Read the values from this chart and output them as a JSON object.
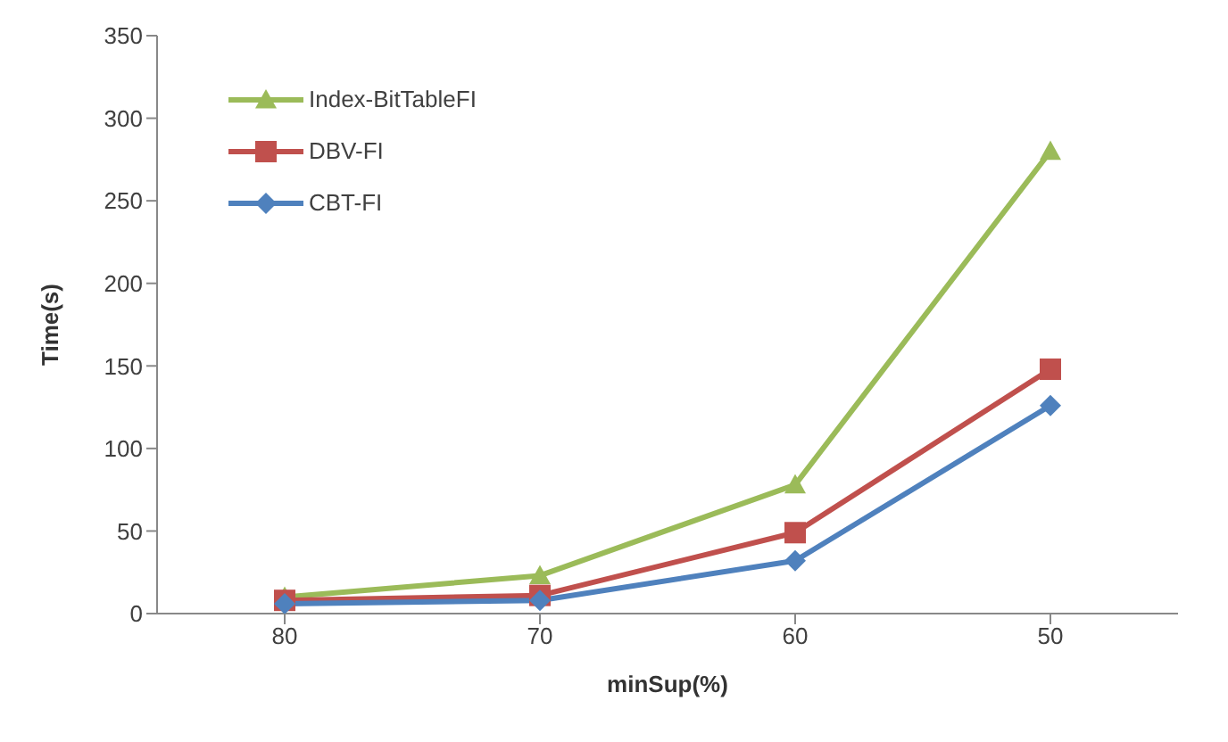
{
  "chart_data": {
    "type": "line",
    "xlabel": "minSup(%)",
    "ylabel": "Time(s)",
    "categories": [
      "80",
      "70",
      "60",
      "50"
    ],
    "ylim": [
      0,
      350
    ],
    "yticks": [
      0,
      50,
      100,
      150,
      200,
      250,
      300,
      350
    ],
    "grid": false,
    "legend": "top left",
    "series": [
      {
        "name": "Index-BitTableFI",
        "color": "#9bbb59",
        "marker": "triangle",
        "values": [
          10,
          23,
          78,
          280
        ]
      },
      {
        "name": "DBV-FI",
        "color": "#c0504d",
        "marker": "square",
        "values": [
          8,
          11,
          49,
          148
        ]
      },
      {
        "name": "CBT-FI",
        "color": "#4f81bd",
        "marker": "diamond",
        "values": [
          6,
          8,
          32,
          126
        ]
      }
    ]
  }
}
